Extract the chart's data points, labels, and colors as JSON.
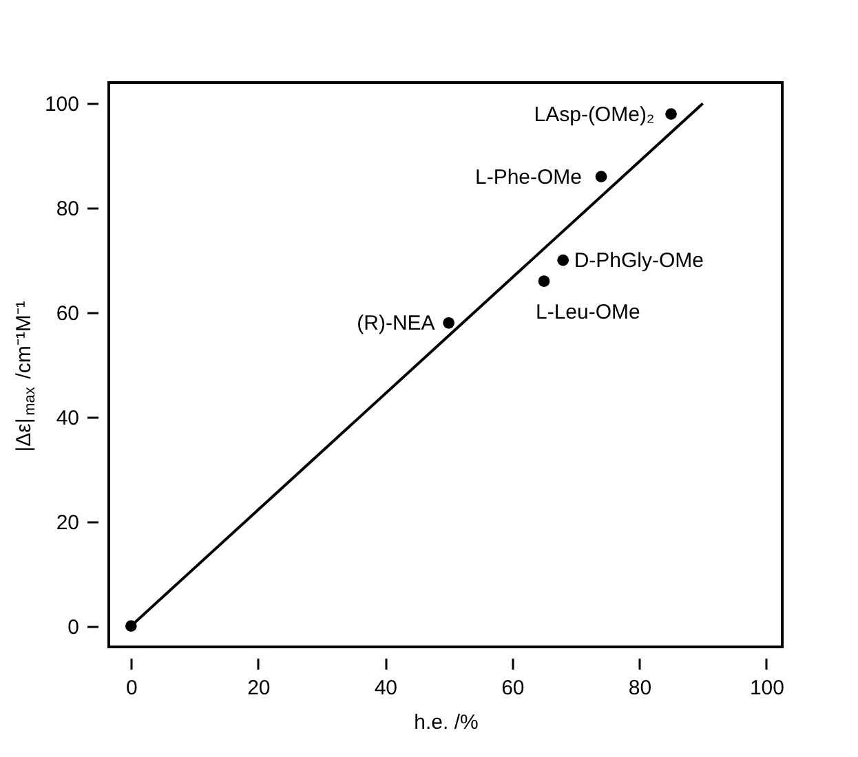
{
  "chart_data": {
    "type": "scatter",
    "xlabel": "h.e. /%",
    "ylabel": "|Δε|$_{max}$ /cm⁻¹M⁻¹",
    "x": [
      0,
      50,
      65,
      68,
      74,
      85
    ],
    "series": [
      {
        "color": "#000000",
        "marker": "circle",
        "values": [
          0,
          58,
          66,
          70,
          86,
          98
        ]
      },
      {
        "type": "line",
        "color": "#000000",
        "x": [
          0,
          90
        ],
        "values": [
          0,
          100
        ],
        "line_style": "solid"
      }
    ],
    "annotations": [
      {
        "text": "(R)-NEA",
        "x": 50,
        "y": 58
      },
      {
        "text": "L-Leu-OMe",
        "x": 65,
        "y": 66
      },
      {
        "text": "D-PhGly-OMe",
        "x": 68,
        "y": 70
      },
      {
        "text": "L-Phe-OMe",
        "x": 74,
        "y": 86
      },
      {
        "text": "LAsp-(OMe)₂",
        "x": 85,
        "y": 98
      }
    ],
    "xlim": [
      -3.5,
      102.5
    ],
    "ylim": [
      -4,
      104
    ],
    "xticks": [
      0,
      20,
      40,
      60,
      80,
      100
    ],
    "yticks": [
      0,
      20,
      40,
      60,
      80,
      100
    ],
    "grid": false
  }
}
